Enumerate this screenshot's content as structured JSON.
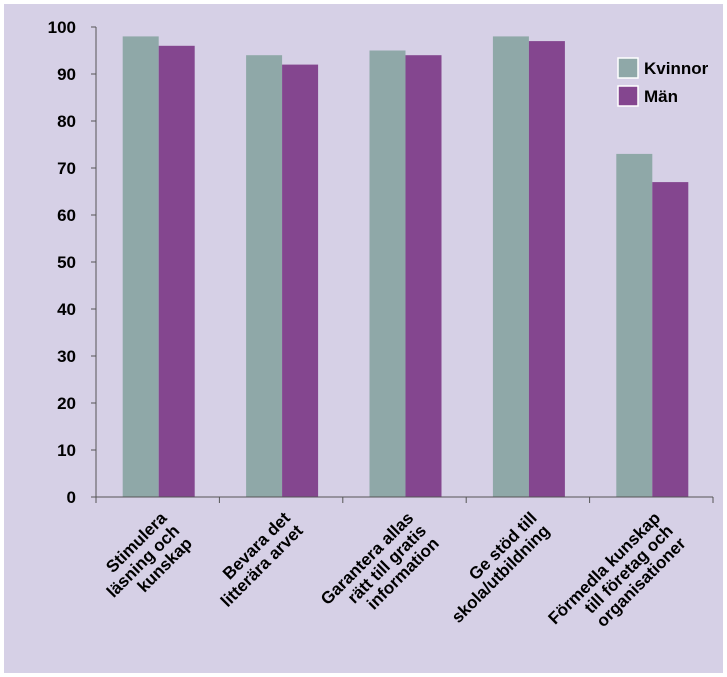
{
  "chart_data": {
    "type": "bar",
    "categories": [
      [
        "Stimulera",
        "läsning och",
        "kunskap"
      ],
      [
        "Bevara det",
        "litterära arvet"
      ],
      [
        "Garantera allas",
        "rätt till gratis",
        "information"
      ],
      [
        "Ge stöd till",
        "skola/utbildning"
      ],
      [
        "Förmedla kunskap",
        "till företag och",
        "organisationer"
      ]
    ],
    "series": [
      {
        "name": "Kvinnor",
        "color": "#8fa8a8",
        "values": [
          98,
          94,
          95,
          98,
          73
        ]
      },
      {
        "name": "Män",
        "color": "#84468f",
        "values": [
          96,
          92,
          94,
          97,
          67
        ]
      }
    ],
    "ylim": [
      0,
      100
    ],
    "yticks": [
      "0",
      "10",
      "20",
      "30",
      "40",
      "50",
      "60",
      "70",
      "80",
      "90",
      "100"
    ],
    "legend": "right",
    "background": "#d6d0e6",
    "grid": false
  }
}
